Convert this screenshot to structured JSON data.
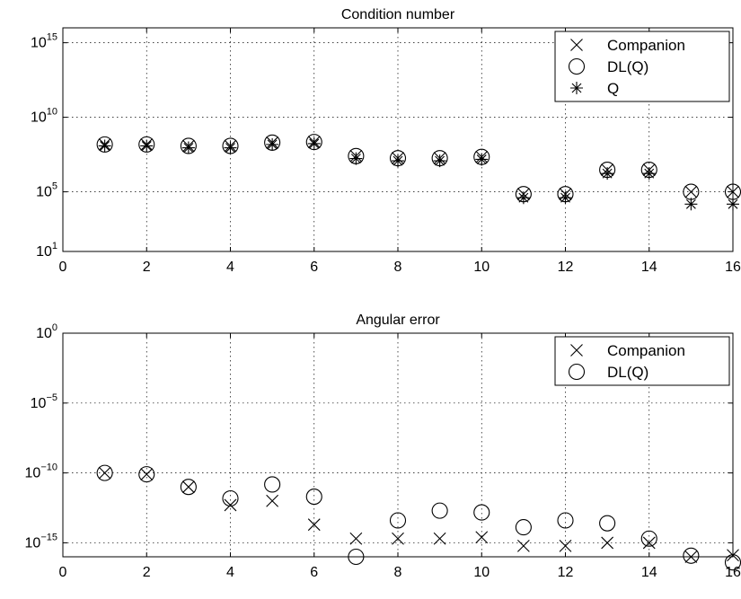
{
  "chart_data": [
    {
      "type": "scatter",
      "title": "Condition number",
      "xlabel": "",
      "ylabel": "",
      "yscale": "log",
      "xlim": [
        0,
        16
      ],
      "ylim": [
        10.0,
        1e+16
      ],
      "xticks": [
        0,
        2,
        4,
        6,
        8,
        10,
        12,
        14,
        16
      ],
      "xtick_labels": [
        "0",
        "2",
        "4",
        "6",
        "8",
        "10",
        "12",
        "14",
        "16"
      ],
      "yticks": [
        {
          "value": 10.0,
          "base": "10",
          "exp": "1"
        },
        {
          "value": 100000.0,
          "base": "10",
          "exp": "5"
        },
        {
          "value": 10000000000.0,
          "base": "10",
          "exp": "10"
        },
        {
          "value": 1000000000000000.0,
          "base": "10",
          "exp": "15"
        }
      ],
      "grid": true,
      "legend_position": "top-right",
      "series": [
        {
          "name": "Companion",
          "marker": "x",
          "x": [
            1,
            2,
            3,
            4,
            5,
            6,
            7,
            8,
            9,
            10,
            11,
            12,
            13,
            14,
            15,
            16
          ],
          "y": [
            150000000.0,
            150000000.0,
            120000000.0,
            120000000.0,
            200000000.0,
            220000000.0,
            25000000.0,
            18000000.0,
            18000000.0,
            22000000.0,
            70000.0,
            70000.0,
            3000000.0,
            3000000.0,
            100000.0,
            100000.0
          ]
        },
        {
          "name": "DL(Q)",
          "marker": "o",
          "x": [
            1,
            2,
            3,
            4,
            5,
            6,
            7,
            8,
            9,
            10,
            11,
            12,
            13,
            14,
            15,
            16
          ],
          "y": [
            150000000.0,
            150000000.0,
            120000000.0,
            120000000.0,
            200000000.0,
            220000000.0,
            25000000.0,
            18000000.0,
            18000000.0,
            22000000.0,
            70000.0,
            70000.0,
            3000000.0,
            3000000.0,
            100000.0,
            100000.0
          ]
        },
        {
          "name": "Q",
          "marker": "*",
          "x": [
            1,
            2,
            3,
            4,
            5,
            6,
            7,
            8,
            9,
            10,
            11,
            12,
            13,
            14,
            15,
            16
          ],
          "y": [
            120000000.0,
            120000000.0,
            90000000.0,
            90000000.0,
            150000000.0,
            170000000.0,
            17000000.0,
            12000000.0,
            12000000.0,
            15000000.0,
            40000.0,
            40000.0,
            1700000.0,
            1700000.0,
            15000.0,
            15000.0
          ]
        }
      ]
    },
    {
      "type": "scatter",
      "title": "Angular error",
      "xlabel": "",
      "ylabel": "",
      "yscale": "log",
      "xlim": [
        0,
        16
      ],
      "ylim": [
        1e-16,
        1.0
      ],
      "xticks": [
        0,
        2,
        4,
        6,
        8,
        10,
        12,
        14,
        16
      ],
      "xtick_labels": [
        "0",
        "2",
        "4",
        "6",
        "8",
        "10",
        "12",
        "14",
        "16"
      ],
      "yticks": [
        {
          "value": 1e-15,
          "base": "10",
          "exp": "−15"
        },
        {
          "value": 1e-10,
          "base": "10",
          "exp": "−10"
        },
        {
          "value": 1e-05,
          "base": "10",
          "exp": "−5"
        },
        {
          "value": 1.0,
          "base": "10",
          "exp": "0"
        }
      ],
      "grid": true,
      "legend_position": "top-right",
      "series": [
        {
          "name": "Companion",
          "marker": "x",
          "x": [
            1,
            2,
            3,
            4,
            5,
            6,
            7,
            8,
            9,
            10,
            11,
            12,
            13,
            14,
            15,
            16
          ],
          "y": [
            1e-10,
            8e-11,
            1e-11,
            5e-13,
            1e-12,
            2e-14,
            2e-15,
            2e-15,
            2e-15,
            2.5e-15,
            6e-16,
            6e-16,
            1e-15,
            1e-15,
            1e-16,
            1.3e-16
          ]
        },
        {
          "name": "DL(Q)",
          "marker": "o",
          "x": [
            1,
            2,
            3,
            4,
            5,
            6,
            7,
            8,
            9,
            10,
            11,
            12,
            13,
            14,
            15,
            16
          ],
          "y": [
            1e-10,
            8e-11,
            1e-11,
            1.5e-12,
            1.5e-11,
            2e-12,
            1e-16,
            4e-14,
            2e-13,
            1.5e-13,
            1.3e-14,
            4e-14,
            2.5e-14,
            2e-15,
            1.2e-16,
            4e-17
          ]
        }
      ]
    }
  ]
}
